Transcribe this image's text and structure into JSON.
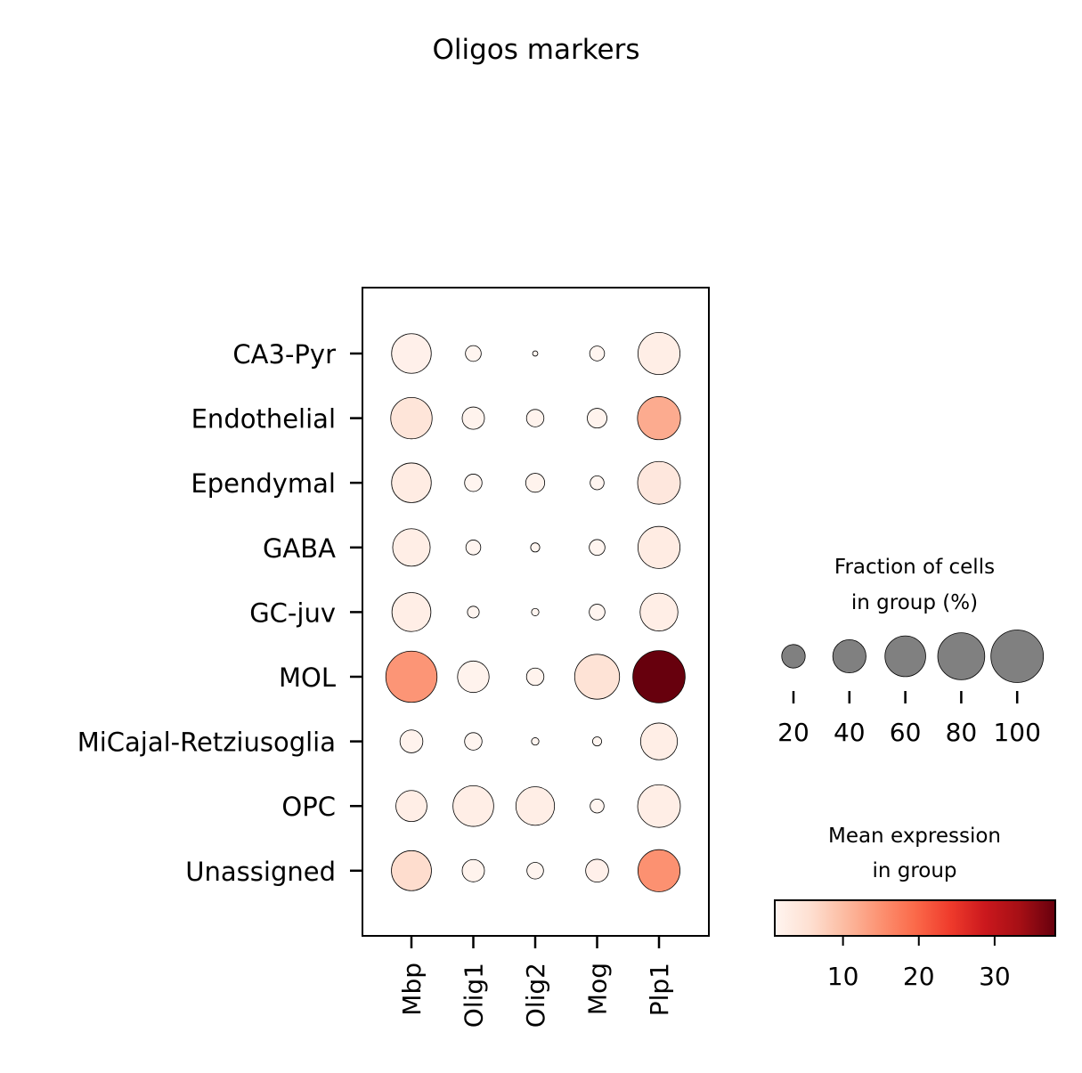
{
  "chart_data": {
    "type": "dotplot",
    "title": "Oligos markers",
    "genes": [
      "Mbp",
      "Olig1",
      "Olig2",
      "Mog",
      "Plp1"
    ],
    "groups": [
      "CA3-Pyr",
      "Endothelial",
      "Ependymal",
      "GABA",
      "GC-juv",
      "MOL",
      "MiCajal-Retziusoglia",
      "OPC",
      "Unassigned"
    ],
    "fraction_pct": [
      [
        57,
        9,
        1,
        8,
        64
      ],
      [
        62,
        18,
        11,
        14,
        67
      ],
      [
        57,
        11,
        13,
        7,
        66
      ],
      [
        51,
        8,
        3,
        9,
        64
      ],
      [
        55,
        5,
        2,
        9,
        52
      ],
      [
        95,
        36,
        11,
        73,
        99
      ],
      [
        19,
        11,
        2,
        3,
        49
      ],
      [
        35,
        60,
        54,
        7,
        66
      ],
      [
        58,
        18,
        10,
        19,
        64
      ]
    ],
    "mean_expression": [
      [
        2.0,
        1.0,
        1.0,
        1.0,
        2.5
      ],
      [
        4.5,
        1.5,
        1.5,
        1.5,
        12.0
      ],
      [
        3.0,
        1.0,
        1.5,
        1.0,
        4.0
      ],
      [
        2.5,
        1.0,
        1.0,
        1.0,
        3.0
      ],
      [
        2.5,
        1.0,
        1.0,
        1.0,
        2.5
      ],
      [
        14.5,
        1.5,
        1.5,
        5.0,
        38.0
      ],
      [
        1.5,
        1.0,
        1.0,
        1.0,
        2.5
      ],
      [
        2.5,
        2.5,
        2.5,
        1.0,
        2.5
      ],
      [
        6.0,
        1.5,
        1.0,
        2.0,
        15.0
      ]
    ],
    "size_legend": {
      "title_lines": [
        "Fraction of cells",
        "in group (%)"
      ],
      "values": [
        20,
        40,
        60,
        80,
        100
      ],
      "labels": [
        "20",
        "40",
        "60",
        "80",
        "100"
      ],
      "dot_color": "#808080"
    },
    "color_legend": {
      "title_lines": [
        "Mean expression",
        "in group"
      ],
      "colormap": "Reds",
      "range": [
        1,
        38
      ],
      "ticks": [
        10,
        20,
        30
      ],
      "tick_labels": [
        "10",
        "20",
        "30"
      ]
    },
    "grid": false
  }
}
